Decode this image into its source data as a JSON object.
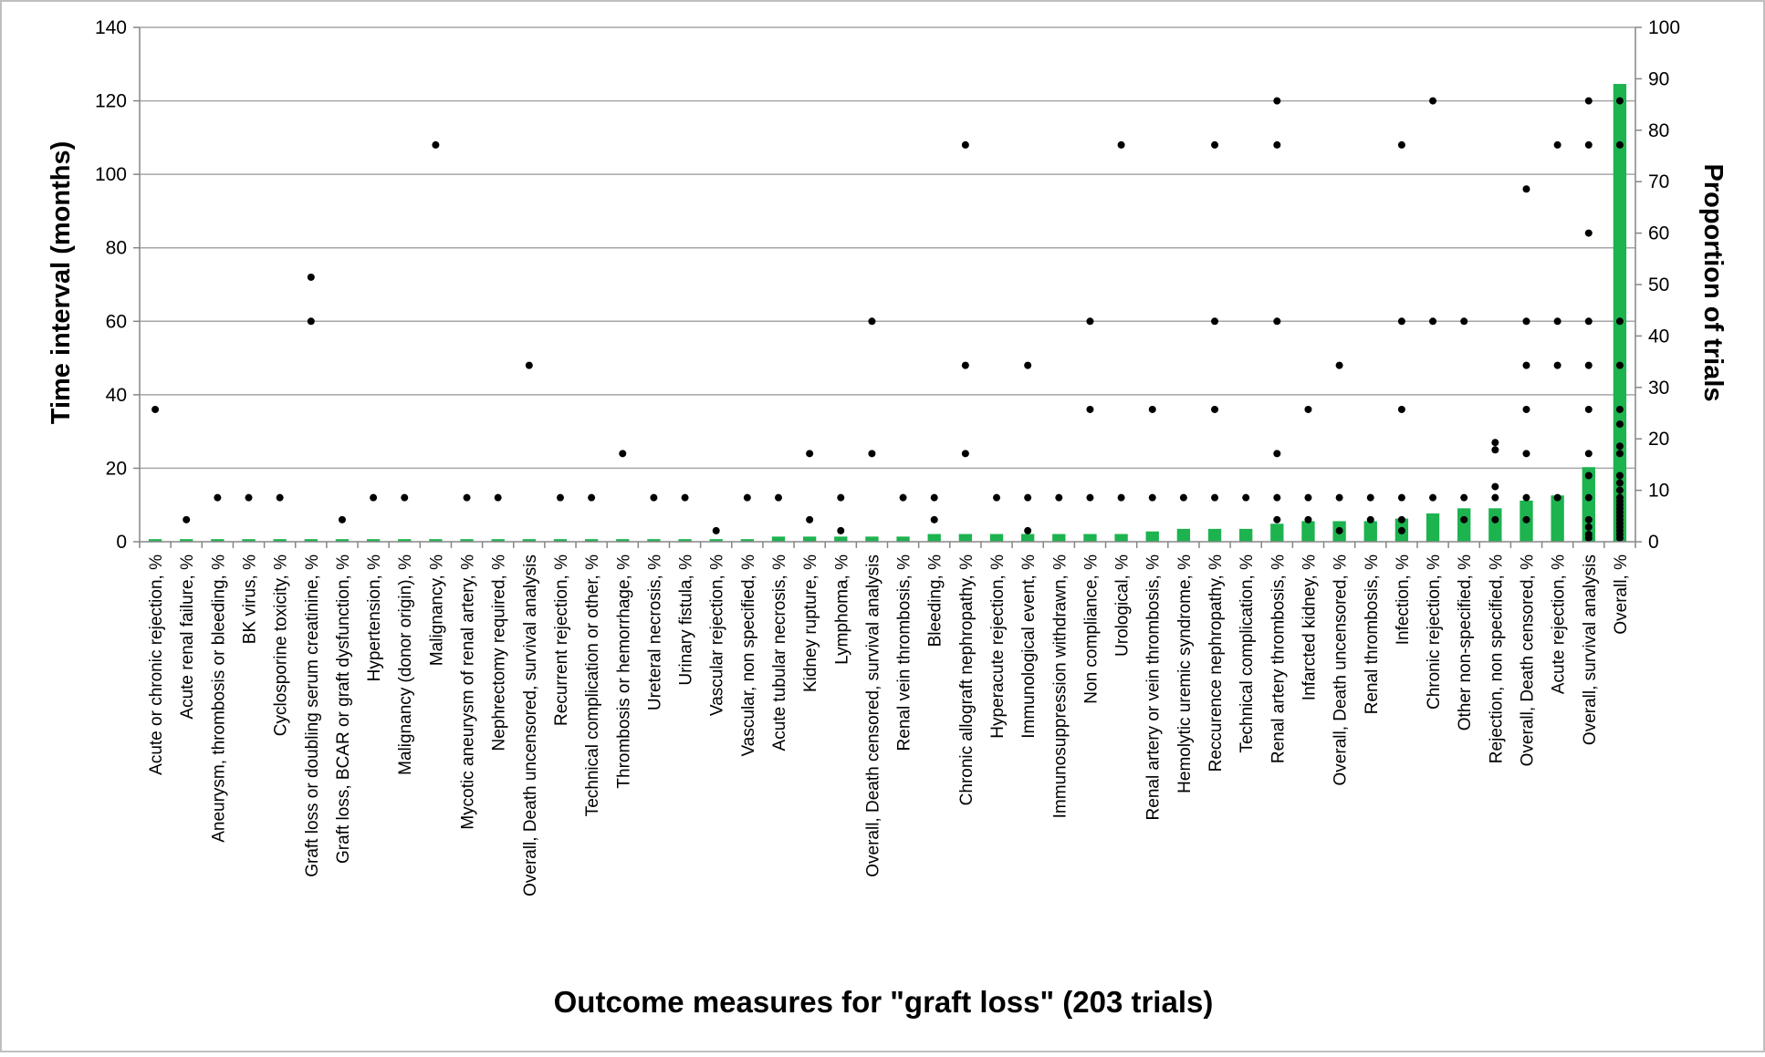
{
  "chart_data": {
    "type": "bar",
    "xlabel": "Outcome measures for \"graft loss\" (203 trials)",
    "ylabel": "Time interval (months)",
    "y2label": "Proportion of trials",
    "ylim": [
      0,
      140
    ],
    "y2lim": [
      0,
      100
    ],
    "yticks": [
      "0",
      "20",
      "40",
      "60",
      "80",
      "100",
      "120",
      "140"
    ],
    "y2ticks": [
      "0",
      "10",
      "20",
      "30",
      "40",
      "50",
      "60",
      "70",
      "80",
      "90",
      "100"
    ],
    "grid": true,
    "bar_color": "#1db34f",
    "dot_color": "#000000",
    "series": [
      {
        "name": "Proportion of trials",
        "axis": "right",
        "kind": "bar"
      },
      {
        "name": "Time interval (months)",
        "axis": "left",
        "kind": "scatter"
      }
    ],
    "categories": [
      "Acute or chronic rejection, %",
      "Acute renal failure, %",
      "Aneurysm, thrombosis or bleeding, %",
      "BK virus, %",
      "Cyclosporine toxicity, %",
      "Graft loss or doubling serum creatinine, %",
      "Graft loss, BCAR or graft dysfunction, %",
      "Hypertension, %",
      "Malignancy (donor origin), %",
      "Malignancy, %",
      "Mycotic aneurysm of renal artery, %",
      "Nephrectomy required, %",
      "Overall, Death uncensored, survival analysis",
      "Recurrent rejection, %",
      "Technical complication or other, %",
      "Thrombosis or hemorrhage, %",
      "Ureteral necrosis, %",
      "Urinary fistula, %",
      "Vascular rejection, %",
      "Vascular, non specified, %",
      "Acute tubular necrosis, %",
      "Kidney rupture, %",
      "Lymphoma, %",
      "Overall, Death censored, survival analysis",
      "Renal vein thrombosis, %",
      "Bleeding, %",
      "Chronic allograft nephropathy, %",
      "Hyperacute rejection, %",
      "Immunological event, %",
      "Immunosuppression withdrawn, %",
      "Non compliance, %",
      "Urological, %",
      "Renal artery or vein thrombosis, %",
      "Hemolytic uremic syndrome, %",
      "Reccurence nephropathy, %",
      "Technical complication, %",
      "Renal artery thrombosis, %",
      "Infarcted kidney, %",
      "Overall, Death uncensored, %",
      "Renal thrombosis, %",
      "Infection, %",
      "Chronic rejection, %",
      "Other non-specified, %",
      "Rejection, non specified, %",
      "Overall, Death censored, %",
      "Acute rejection, %",
      "Overall, survival analysis",
      "Overall, %"
    ],
    "bar_values": [
      0.5,
      0.5,
      0.5,
      0.5,
      0.5,
      0.5,
      0.5,
      0.5,
      0.5,
      0.5,
      0.5,
      0.5,
      0.5,
      0.5,
      0.5,
      0.5,
      0.5,
      0.5,
      0.5,
      0.5,
      1.0,
      1.0,
      1.0,
      1.0,
      1.0,
      1.5,
      1.5,
      1.5,
      1.5,
      1.5,
      1.5,
      1.5,
      2.0,
      2.5,
      2.5,
      2.5,
      3.5,
      4.0,
      4.0,
      4.0,
      4.5,
      5.5,
      6.5,
      6.5,
      8.0,
      9.0,
      14.5,
      89.0
    ],
    "time_points": [
      [
        36
      ],
      [
        6
      ],
      [
        12
      ],
      [
        12
      ],
      [
        12
      ],
      [
        72,
        60
      ],
      [
        6
      ],
      [
        12
      ],
      [
        12
      ],
      [
        108
      ],
      [
        12
      ],
      [
        12
      ],
      [
        48
      ],
      [
        12
      ],
      [
        12
      ],
      [
        24
      ],
      [
        12
      ],
      [
        12
      ],
      [
        3
      ],
      [
        12
      ],
      [
        12
      ],
      [
        24,
        6
      ],
      [
        12,
        3
      ],
      [
        60,
        24
      ],
      [
        12
      ],
      [
        12,
        6
      ],
      [
        108,
        48,
        24
      ],
      [
        12
      ],
      [
        48,
        12,
        3
      ],
      [
        12
      ],
      [
        60,
        36,
        12
      ],
      [
        108,
        12
      ],
      [
        36,
        12
      ],
      [
        12
      ],
      [
        108,
        60,
        36,
        12
      ],
      [
        12
      ],
      [
        120,
        108,
        60,
        24,
        12,
        6
      ],
      [
        36,
        12,
        6
      ],
      [
        48,
        12,
        3
      ],
      [
        12,
        6
      ],
      [
        108,
        60,
        36,
        12,
        6,
        3
      ],
      [
        120,
        60,
        12
      ],
      [
        60,
        12,
        6
      ],
      [
        27,
        25,
        15,
        12,
        6
      ],
      [
        96,
        60,
        48,
        36,
        24,
        12,
        6
      ],
      [
        108,
        60,
        48,
        12
      ],
      [
        120,
        108,
        84,
        60,
        48,
        36,
        24,
        18,
        12,
        6,
        4,
        2,
        1
      ],
      [
        120,
        108,
        60,
        48,
        36,
        32,
        26,
        24,
        18,
        16,
        14,
        12,
        11,
        10,
        9,
        8,
        7,
        6,
        5,
        4,
        3,
        2,
        1
      ]
    ]
  }
}
